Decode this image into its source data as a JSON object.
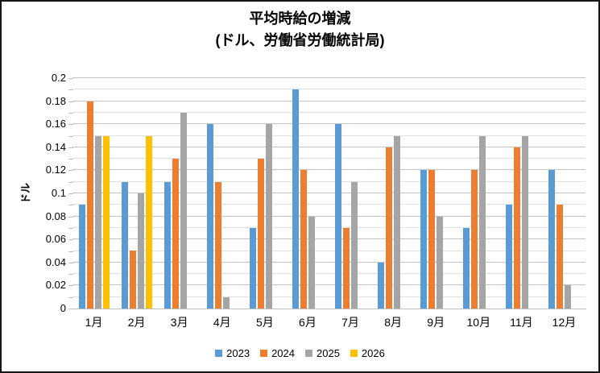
{
  "title": {
    "line1": "平均時給の増減",
    "line2": "(ドル、労働省労働統計局)"
  },
  "chart_data": {
    "type": "bar",
    "title": "平均時給の増減 (ドル、労働省労働統計局)",
    "xlabel": "",
    "ylabel": "ドル",
    "ylim": [
      0,
      0.2
    ],
    "ytick_step": 0.02,
    "minor_gridline_step": 0.01,
    "grid": true,
    "legend_position": "bottom",
    "yticks": [
      "0",
      "0.02",
      "0.04",
      "0.06",
      "0.08",
      "0.1",
      "0.12",
      "0.14",
      "0.16",
      "0.18",
      "0.2"
    ],
    "categories": [
      "1月",
      "2月",
      "3月",
      "4月",
      "5月",
      "6月",
      "7月",
      "8月",
      "9月",
      "10月",
      "11月",
      "12月"
    ],
    "series": [
      {
        "name": "2023",
        "color": "#5B9BD5",
        "values": [
          0.09,
          0.11,
          0.11,
          0.16,
          0.07,
          0.19,
          0.16,
          0.04,
          0.12,
          0.07,
          0.09,
          0.12
        ]
      },
      {
        "name": "2024",
        "color": "#ED7D31",
        "values": [
          0.18,
          0.05,
          0.13,
          0.11,
          0.13,
          0.12,
          0.07,
          0.14,
          0.12,
          0.12,
          0.14,
          0.09
        ]
      },
      {
        "name": "2025",
        "color": "#A5A5A5",
        "values": [
          0.15,
          0.1,
          0.17,
          0.01,
          0.16,
          0.08,
          0.11,
          0.15,
          0.08,
          0.15,
          0.15,
          0.02
        ]
      },
      {
        "name": "2026",
        "color": "#FFC000",
        "values": [
          0.15,
          0.15,
          null,
          null,
          null,
          null,
          null,
          null,
          null,
          null,
          null,
          null
        ]
      }
    ]
  }
}
